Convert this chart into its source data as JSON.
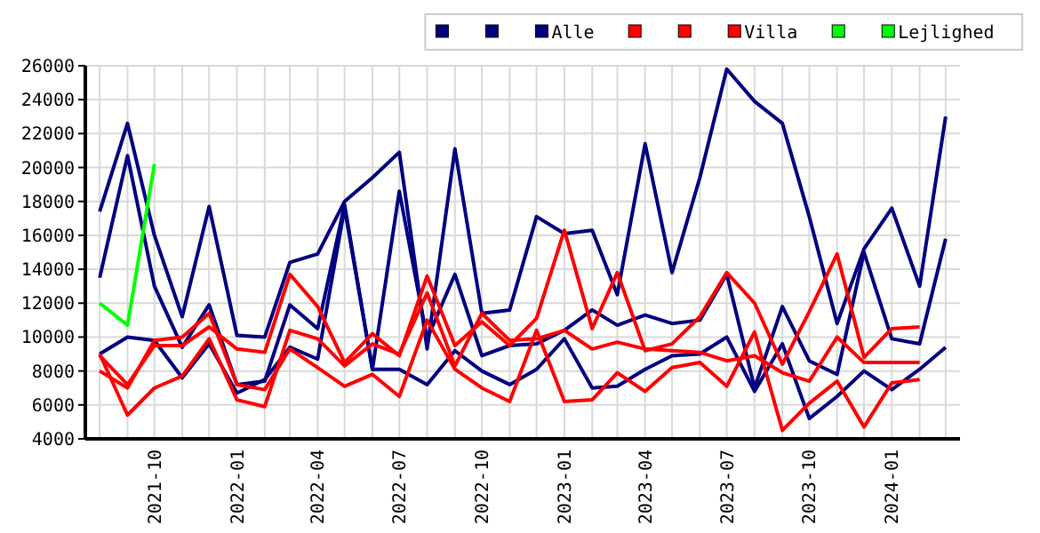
{
  "chart_data": {
    "type": "line",
    "x": [
      "2021-08",
      "2021-09",
      "2021-10",
      "2021-11",
      "2021-12",
      "2022-01",
      "2022-02",
      "2022-03",
      "2022-04",
      "2022-05",
      "2022-06",
      "2022-07",
      "2022-08",
      "2022-09",
      "2022-10",
      "2022-11",
      "2022-12",
      "2023-01",
      "2023-02",
      "2023-03",
      "2023-04",
      "2023-05",
      "2023-06",
      "2023-07",
      "2023-08",
      "2023-09",
      "2023-10",
      "2023-11",
      "2023-12",
      "2024-01",
      "2024-02",
      "2024-03"
    ],
    "series": [
      {
        "color": "#000080",
        "values": [
          17400,
          22600,
          16000,
          11200,
          17700,
          10100,
          10000,
          14400,
          14900,
          18000,
          19400,
          20900,
          9300,
          21100,
          11400,
          11600,
          17100,
          16100,
          16300,
          12500,
          21400,
          13800,
          19400,
          25800,
          23900,
          22600,
          17100,
          10800,
          15200,
          17600,
          13000,
          23000
        ]
      },
      {
        "color": "#000080",
        "values": [
          13500,
          20700,
          13000,
          9400,
          11900,
          7200,
          7400,
          11900,
          10500,
          17800,
          8100,
          18600,
          9900,
          13700,
          8900,
          9500,
          9600,
          10400,
          11600,
          10700,
          11300,
          10800,
          11000,
          13700,
          7000,
          11800,
          8600,
          7800,
          15000,
          9900,
          9600,
          15800
        ]
      },
      {
        "name": "Alle",
        "color": "#000080",
        "values": [
          9000,
          10000,
          9800,
          7600,
          9600,
          6700,
          7500,
          9400,
          8700,
          17600,
          8100,
          8100,
          7200,
          9200,
          8000,
          7200,
          8100,
          9900,
          7000,
          7100,
          8100,
          8900,
          9000,
          10000,
          6800,
          9600,
          5200,
          6500,
          8000,
          6900,
          8100,
          9400
        ]
      },
      {
        "color": "#ff0000",
        "values": [
          8900,
          7200,
          9500,
          9500,
          10600,
          9300,
          9100,
          13700,
          11800,
          8500,
          10200,
          8900,
          13600,
          9500,
          10900,
          9500,
          11100,
          16300,
          10500,
          13800,
          9200,
          9600,
          11200,
          13800,
          12000,
          8400,
          11500,
          14900,
          8800,
          10500,
          10600,
          null
        ]
      },
      {
        "color": "#ff0000",
        "values": [
          9000,
          5400,
          7000,
          7700,
          9900,
          6300,
          5900,
          10400,
          9900,
          8300,
          9600,
          9000,
          12600,
          8300,
          11400,
          9800,
          9900,
          10400,
          9300,
          9700,
          9300,
          9200,
          9100,
          8600,
          8900,
          7900,
          7400,
          10000,
          8500,
          8500,
          8500,
          null
        ]
      },
      {
        "name": "Villa",
        "color": "#ff0000",
        "values": [
          8000,
          7000,
          9800,
          10000,
          11400,
          7200,
          6900,
          9300,
          8200,
          7100,
          7800,
          6500,
          11000,
          8100,
          7000,
          6200,
          10400,
          6200,
          6300,
          7900,
          6800,
          8200,
          8500,
          7100,
          10300,
          4500,
          6100,
          7400,
          4700,
          7300,
          7500,
          null
        ]
      },
      {
        "color": "#00ff00",
        "values": [
          12000,
          10700,
          20200,
          null,
          null,
          null,
          null,
          null,
          null,
          null,
          null,
          null,
          null,
          null,
          null,
          null,
          null,
          null,
          null,
          null,
          null,
          null,
          null,
          null,
          null,
          null,
          null,
          null,
          null,
          null,
          null,
          null
        ]
      },
      {
        "name": "Lejlighed",
        "color": "#00ff00",
        "values": [
          null,
          null,
          null,
          null,
          null,
          null,
          null,
          null,
          null,
          null,
          null,
          null,
          null,
          null,
          null,
          null,
          null,
          null,
          null,
          null,
          null,
          null,
          null,
          null,
          null,
          null,
          null,
          null,
          null,
          null,
          null,
          null
        ]
      }
    ],
    "xlim": [
      "2021-07-16",
      "2024-03-17"
    ],
    "xticks": [
      {
        "value": "2021-08",
        "label": null
      },
      {
        "value": "2021-09",
        "label": null
      },
      "2021-10",
      {
        "value": "2021-11",
        "label": null
      },
      {
        "value": "2021-12",
        "label": null
      },
      "2022-01",
      {
        "value": "2022-02",
        "label": null
      },
      {
        "value": "2022-03",
        "label": null
      },
      "2022-04",
      {
        "value": "2022-05",
        "label": null
      },
      {
        "value": "2022-06",
        "label": null
      },
      "2022-07",
      {
        "value": "2022-08",
        "label": null
      },
      {
        "value": "2022-09",
        "label": null
      },
      "2022-10",
      {
        "value": "2022-11",
        "label": null
      },
      {
        "value": "2022-12",
        "label": null
      },
      "2023-01",
      {
        "value": "2023-02",
        "label": null
      },
      {
        "value": "2023-03",
        "label": null
      },
      "2023-04",
      {
        "value": "2023-05",
        "label": null
      },
      {
        "value": "2023-06",
        "label": null
      },
      "2023-07",
      {
        "value": "2023-08",
        "label": null
      },
      {
        "value": "2023-09",
        "label": null
      },
      "2023-10",
      {
        "value": "2023-11",
        "label": null
      },
      {
        "value": "2023-12",
        "label": null
      },
      "2024-01",
      {
        "value": "2024-02",
        "label": null
      },
      {
        "value": "2024-03",
        "label": null
      }
    ],
    "ylim": [
      4000,
      26000
    ],
    "yticks": [
      4000,
      6000,
      8000,
      10000,
      12000,
      14000,
      16000,
      18000,
      20000,
      22000,
      24000,
      26000
    ],
    "grid": true,
    "legend": "top right",
    "marker": "none",
    "line_style": "solid"
  }
}
